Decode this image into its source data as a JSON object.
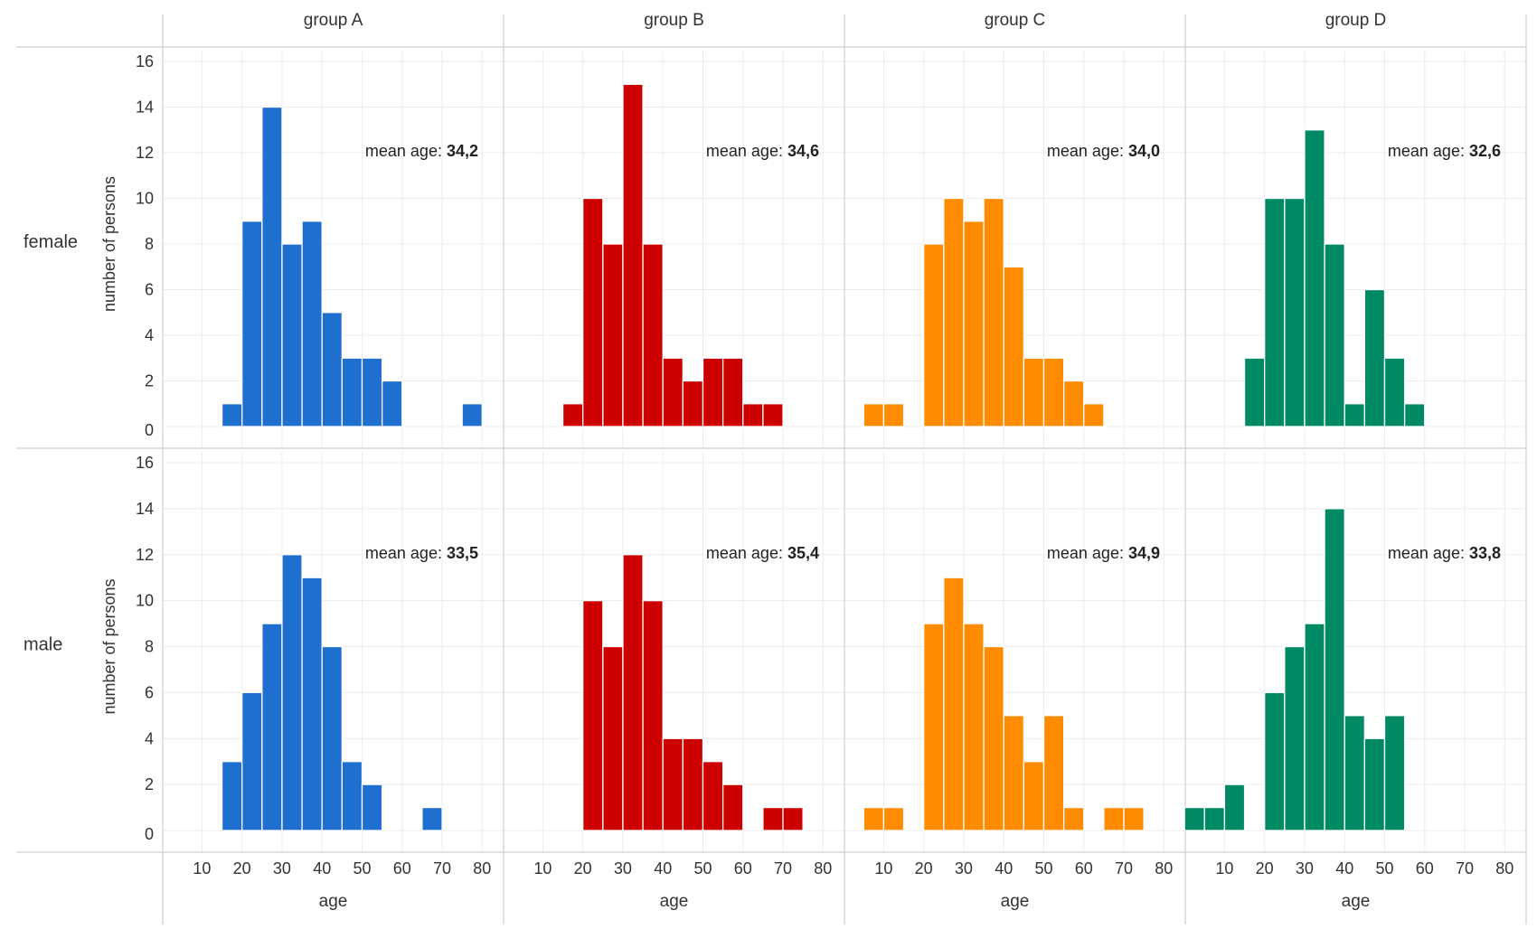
{
  "chart_data": {
    "type": "bar",
    "subtype": "faceted-histogram",
    "columns": [
      {
        "label": "group A",
        "color": "#1f6fd1"
      },
      {
        "label": "group B",
        "color": "#cc0000"
      },
      {
        "label": "group C",
        "color": "#ff8c00"
      },
      {
        "label": "group D",
        "color": "#008a64"
      }
    ],
    "rows": [
      {
        "label": "female",
        "ylabel": "number of persons"
      },
      {
        "label": "male",
        "ylabel": "number of persons"
      }
    ],
    "xlabel": "age",
    "x_ticks": [
      10,
      20,
      30,
      40,
      50,
      60,
      70,
      80
    ],
    "xlim": [
      2,
      84
    ],
    "y_ticks": [
      0,
      2,
      4,
      6,
      8,
      10,
      12,
      14,
      16
    ],
    "ylim": [
      0,
      16
    ],
    "bin_width": 5,
    "mean_label_prefix": "mean age:",
    "grid": true,
    "panels": [
      {
        "row": 0,
        "col": 0,
        "mean": "34,2",
        "bins": [
          {
            "x": 15,
            "count": 1
          },
          {
            "x": 20,
            "count": 9
          },
          {
            "x": 25,
            "count": 14
          },
          {
            "x": 30,
            "count": 8
          },
          {
            "x": 35,
            "count": 9
          },
          {
            "x": 40,
            "count": 5
          },
          {
            "x": 45,
            "count": 3
          },
          {
            "x": 50,
            "count": 3
          },
          {
            "x": 55,
            "count": 2
          },
          {
            "x": 75,
            "count": 1
          }
        ]
      },
      {
        "row": 0,
        "col": 1,
        "mean": "34,6",
        "bins": [
          {
            "x": 15,
            "count": 1
          },
          {
            "x": 20,
            "count": 10
          },
          {
            "x": 25,
            "count": 8
          },
          {
            "x": 30,
            "count": 15
          },
          {
            "x": 35,
            "count": 8
          },
          {
            "x": 40,
            "count": 3
          },
          {
            "x": 45,
            "count": 2
          },
          {
            "x": 50,
            "count": 3
          },
          {
            "x": 55,
            "count": 3
          },
          {
            "x": 60,
            "count": 1
          },
          {
            "x": 65,
            "count": 1
          }
        ]
      },
      {
        "row": 0,
        "col": 2,
        "mean": "34,0",
        "bins": [
          {
            "x": 5,
            "count": 1
          },
          {
            "x": 10,
            "count": 1
          },
          {
            "x": 20,
            "count": 8
          },
          {
            "x": 25,
            "count": 10
          },
          {
            "x": 30,
            "count": 9
          },
          {
            "x": 35,
            "count": 10
          },
          {
            "x": 40,
            "count": 7
          },
          {
            "x": 45,
            "count": 3
          },
          {
            "x": 50,
            "count": 3
          },
          {
            "x": 55,
            "count": 2
          },
          {
            "x": 60,
            "count": 1
          }
        ]
      },
      {
        "row": 0,
        "col": 3,
        "mean": "32,6",
        "bins": [
          {
            "x": 15,
            "count": 3
          },
          {
            "x": 20,
            "count": 10
          },
          {
            "x": 25,
            "count": 10
          },
          {
            "x": 30,
            "count": 13
          },
          {
            "x": 35,
            "count": 8
          },
          {
            "x": 40,
            "count": 1
          },
          {
            "x": 45,
            "count": 6
          },
          {
            "x": 50,
            "count": 3
          },
          {
            "x": 55,
            "count": 1
          }
        ]
      },
      {
        "row": 1,
        "col": 0,
        "mean": "33,5",
        "bins": [
          {
            "x": 15,
            "count": 3
          },
          {
            "x": 20,
            "count": 6
          },
          {
            "x": 25,
            "count": 9
          },
          {
            "x": 30,
            "count": 12
          },
          {
            "x": 35,
            "count": 11
          },
          {
            "x": 40,
            "count": 8
          },
          {
            "x": 45,
            "count": 3
          },
          {
            "x": 50,
            "count": 2
          },
          {
            "x": 65,
            "count": 1
          }
        ]
      },
      {
        "row": 1,
        "col": 1,
        "mean": "35,4",
        "bins": [
          {
            "x": 20,
            "count": 10
          },
          {
            "x": 25,
            "count": 8
          },
          {
            "x": 30,
            "count": 12
          },
          {
            "x": 35,
            "count": 10
          },
          {
            "x": 40,
            "count": 4
          },
          {
            "x": 45,
            "count": 4
          },
          {
            "x": 50,
            "count": 3
          },
          {
            "x": 55,
            "count": 2
          },
          {
            "x": 65,
            "count": 1
          },
          {
            "x": 70,
            "count": 1
          }
        ]
      },
      {
        "row": 1,
        "col": 2,
        "mean": "34,9",
        "bins": [
          {
            "x": 5,
            "count": 1
          },
          {
            "x": 10,
            "count": 1
          },
          {
            "x": 20,
            "count": 9
          },
          {
            "x": 25,
            "count": 11
          },
          {
            "x": 30,
            "count": 9
          },
          {
            "x": 35,
            "count": 8
          },
          {
            "x": 40,
            "count": 5
          },
          {
            "x": 45,
            "count": 3
          },
          {
            "x": 50,
            "count": 5
          },
          {
            "x": 55,
            "count": 1
          },
          {
            "x": 65,
            "count": 1
          },
          {
            "x": 70,
            "count": 1
          }
        ]
      },
      {
        "row": 1,
        "col": 3,
        "mean": "33,8",
        "bins": [
          {
            "x": 0,
            "count": 1
          },
          {
            "x": 5,
            "count": 1
          },
          {
            "x": 10,
            "count": 2
          },
          {
            "x": 20,
            "count": 6
          },
          {
            "x": 25,
            "count": 8
          },
          {
            "x": 30,
            "count": 9
          },
          {
            "x": 35,
            "count": 14
          },
          {
            "x": 40,
            "count": 5
          },
          {
            "x": 45,
            "count": 4
          },
          {
            "x": 50,
            "count": 5
          }
        ]
      }
    ]
  }
}
